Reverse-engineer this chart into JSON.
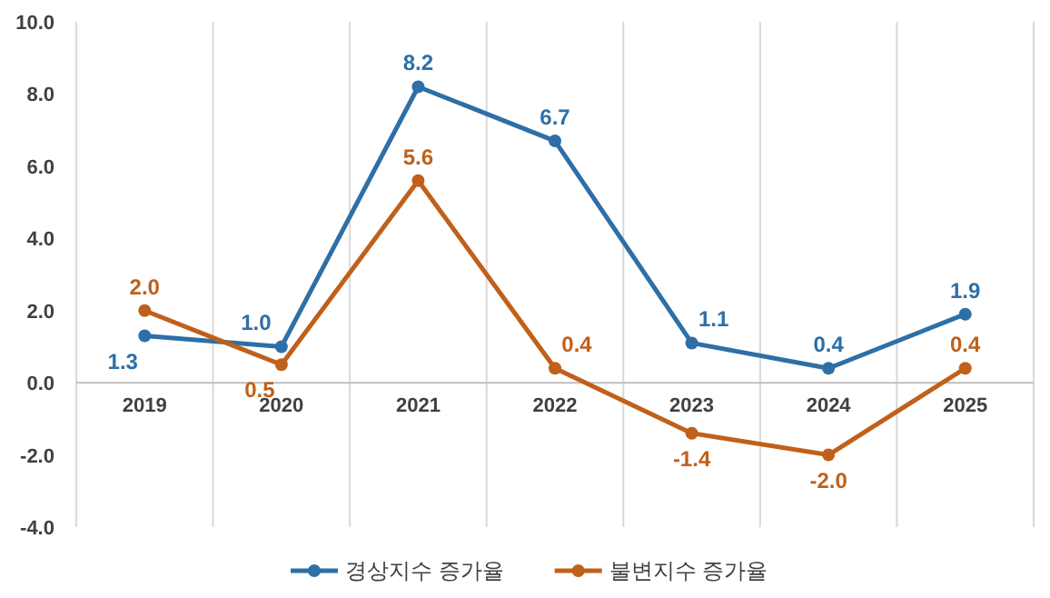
{
  "chart_data": {
    "type": "line",
    "categories": [
      "2019",
      "2020",
      "2021",
      "2022",
      "2023",
      "2024",
      "2025"
    ],
    "series": [
      {
        "name": "경상지수 증가율",
        "color": "#2e6fa6",
        "values": [
          1.3,
          1.0,
          8.2,
          6.7,
          1.1,
          0.4,
          1.9
        ],
        "value_labels": [
          "1.3",
          "1.0",
          "8.2",
          "6.7",
          "1.1",
          "0.4",
          "1.9"
        ]
      },
      {
        "name": "불변지수 증가율",
        "color": "#c0601a",
        "values": [
          2.0,
          0.5,
          5.6,
          0.4,
          -1.4,
          -2.0,
          0.4
        ],
        "value_labels": [
          "2.0",
          "0.5",
          "5.6",
          "0.4",
          "-1.4",
          "-2.0",
          "0.4"
        ]
      }
    ],
    "ylim": [
      -4,
      10
    ],
    "yticks": [
      {
        "value": -4,
        "label": "-4.0"
      },
      {
        "value": -2,
        "label": "-2.0"
      },
      {
        "value": 0,
        "label": "0.0"
      },
      {
        "value": 2,
        "label": "2.0"
      },
      {
        "value": 4,
        "label": "4.0"
      },
      {
        "value": 6,
        "label": "6.0"
      },
      {
        "value": 8,
        "label": "8.0"
      },
      {
        "value": 10,
        "label": "10.0"
      }
    ],
    "grid": "x",
    "legend": "bottom",
    "marker": "circle",
    "line_style": "solid"
  }
}
